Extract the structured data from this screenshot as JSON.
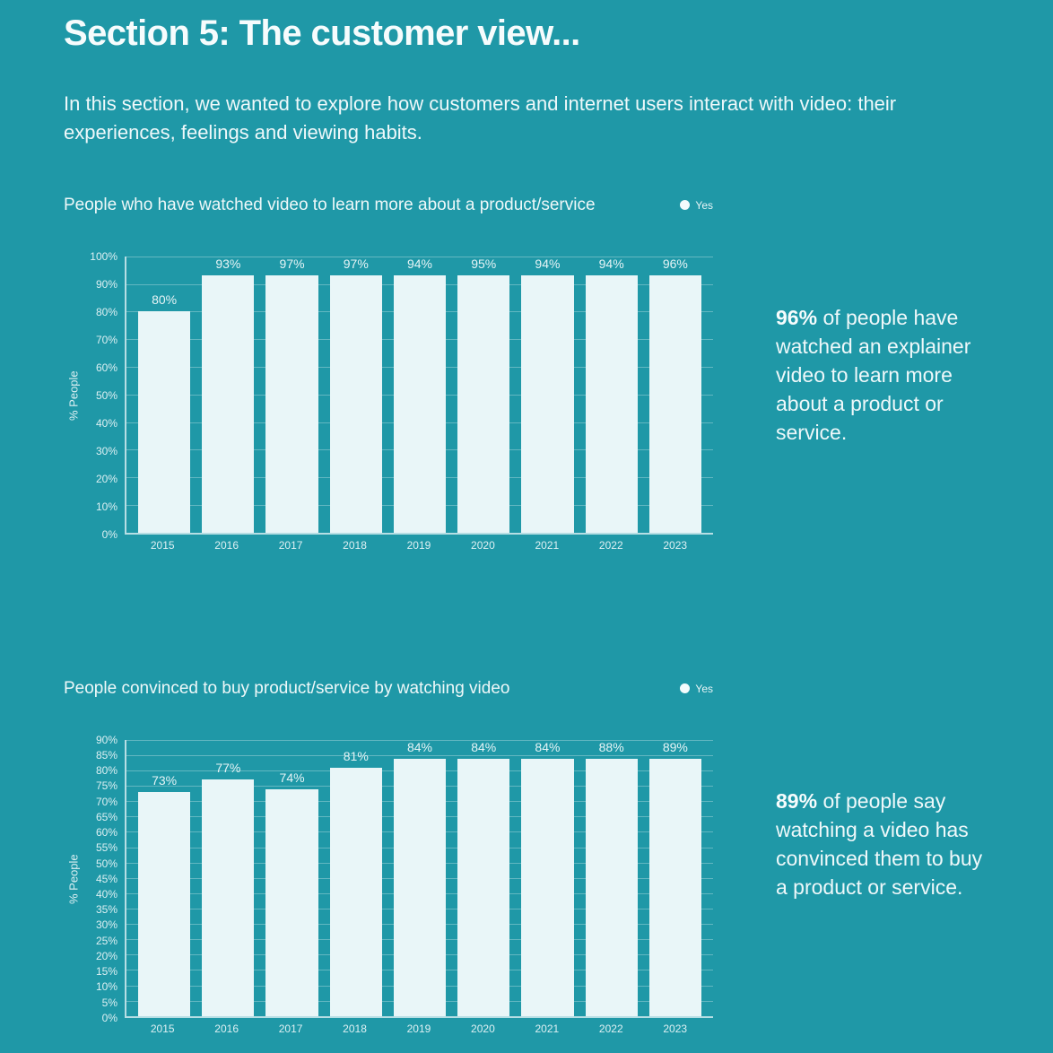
{
  "page": {
    "title": "Section 5: The customer view...",
    "intro": "In this section, we wanted to explore how customers and internet users interact with video: their experiences, feelings and viewing habits.",
    "background_color": "#1f98a7",
    "bar_color": "#e9f6f8",
    "text_color": "#f2fbfc"
  },
  "chart_data": [
    {
      "type": "bar",
      "title": "People who have watched video to learn more about a product/service",
      "legend": [
        {
          "label": "Yes",
          "color": "#f3fbfc"
        }
      ],
      "legend_position": "top-right",
      "categories": [
        "2015",
        "2016",
        "2017",
        "2018",
        "2019",
        "2020",
        "2021",
        "2022",
        "2023"
      ],
      "series": [
        {
          "name": "Yes",
          "values": [
            80,
            93,
            97,
            97,
            94,
            95,
            94,
            94,
            96
          ]
        }
      ],
      "xlabel": "",
      "ylabel": "% People",
      "ylim": [
        0,
        100
      ],
      "ytick_step": 10,
      "value_suffix": "%",
      "grid": true
    },
    {
      "type": "bar",
      "title": "People convinced to buy product/service by watching video",
      "legend": [
        {
          "label": "Yes",
          "color": "#f3fbfc"
        }
      ],
      "legend_position": "top-right",
      "categories": [
        "2015",
        "2016",
        "2017",
        "2018",
        "2019",
        "2020",
        "2021",
        "2022",
        "2023"
      ],
      "series": [
        {
          "name": "Yes",
          "values": [
            73,
            77,
            74,
            81,
            84,
            84,
            84,
            88,
            89
          ]
        }
      ],
      "xlabel": "",
      "ylabel": "% People",
      "ylim": [
        0,
        90
      ],
      "ytick_step": 5,
      "value_suffix": "%",
      "grid": true
    }
  ],
  "stats": [
    {
      "highlight": "96%",
      "text": "of people have watched an explainer video to learn more about a product or service."
    },
    {
      "highlight": "89%",
      "text": "of people say watching a video has convinced them to buy a product or service."
    }
  ]
}
